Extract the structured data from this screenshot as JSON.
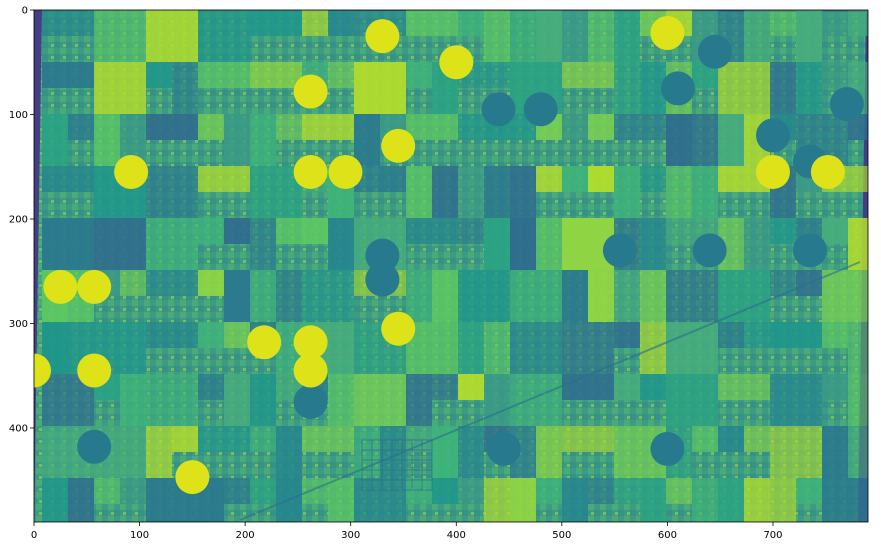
{
  "figure": {
    "description_type": "raster image display (imshow) of satellite field data",
    "colormap": "viridis",
    "colors": {
      "background": "#ffffff",
      "nodata": "#433e85",
      "low": "#2a788e",
      "mid": "#3fb47a",
      "high": "#dde318",
      "axis": "#000000"
    },
    "image_extent": {
      "x": [
        0,
        790
      ],
      "y": [
        490,
        0
      ]
    },
    "x_ticks": [
      0,
      100,
      200,
      300,
      400,
      500,
      600,
      700
    ],
    "y_ticks": [
      0,
      100,
      200,
      300,
      400
    ],
    "x_tick_labels": [
      "0",
      "100",
      "200",
      "300",
      "400",
      "500",
      "600",
      "700"
    ],
    "y_tick_labels": [
      "0",
      "100",
      "200",
      "300",
      "400"
    ]
  }
}
